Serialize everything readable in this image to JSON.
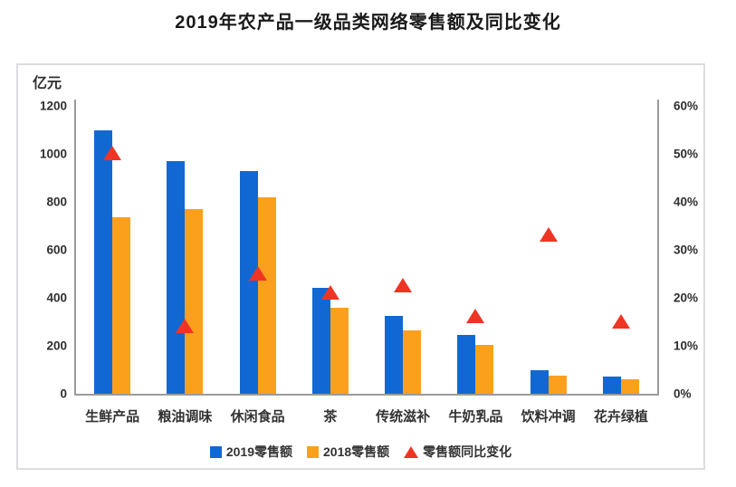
{
  "title": "2019年农产品一级品类网络零售额及同比变化",
  "chart_data": {
    "type": "bar",
    "title": "2019年农产品一级品类网络零售额及同比变化",
    "categories": [
      "生鲜产品",
      "粮油调味",
      "休闲食品",
      "茶",
      "传统滋补",
      "牛奶乳品",
      "饮料冲调",
      "花卉绿植"
    ],
    "series": [
      {
        "name": "2019零售额",
        "type": "bar",
        "axis": "left",
        "color": "#1268d2",
        "values": [
          1100,
          970,
          930,
          440,
          325,
          245,
          100,
          70
        ]
      },
      {
        "name": "2018零售额",
        "type": "bar",
        "axis": "left",
        "color": "#fba01c",
        "values": [
          735,
          770,
          820,
          360,
          265,
          205,
          75,
          60
        ]
      },
      {
        "name": "零售额同比变化",
        "type": "scatter-triangle",
        "axis": "right",
        "color": "#ee3524",
        "values_pct": [
          50,
          14,
          25,
          21,
          22.5,
          16,
          33,
          15
        ]
      }
    ],
    "left_axis": {
      "label": "亿元",
      "min": 0,
      "max": 1200,
      "tick_step": 200,
      "ticks": [
        0,
        200,
        400,
        600,
        800,
        1000,
        1200
      ]
    },
    "right_axis": {
      "min": 0,
      "max": 60,
      "tick_step": 10,
      "ticks": [
        "0%",
        "10%",
        "20%",
        "30%",
        "40%",
        "50%",
        "60%"
      ]
    },
    "legend_position": "bottom",
    "grid": false
  },
  "colors": {
    "bar_2019": "#1268d2",
    "bar_2018": "#fba01c",
    "triangle": "#ee3524",
    "axis_line": "#9b9b9b",
    "panel_border": "#dcdce1",
    "text": "#333333"
  }
}
